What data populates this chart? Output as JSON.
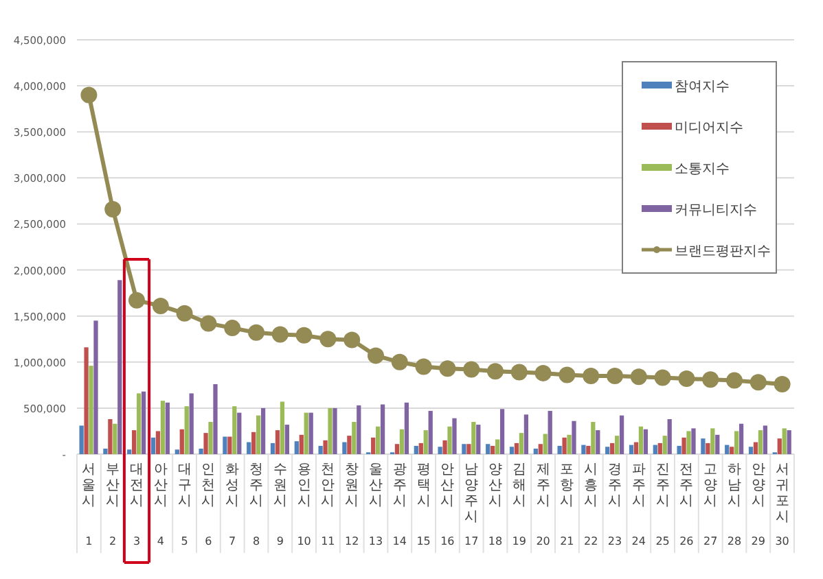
{
  "chart_data": {
    "type": "bar",
    "categories": [
      "서울시 1",
      "부산시 2",
      "대전시 3",
      "아산시 4",
      "대구시 5",
      "인천시 6",
      "화성시 7",
      "청주시 8",
      "수원시 9",
      "용인시 10",
      "천안시 11",
      "창원시 12",
      "울산시 13",
      "광주시 14",
      "평택시 15",
      "안산시 16",
      "남양주시 17",
      "양산시 18",
      "김해시 19",
      "제주시 20",
      "포항시 21",
      "시흥시 22",
      "경주시 23",
      "파주시 24",
      "진주시 25",
      "전주시 26",
      "고양시 27",
      "하남시 28",
      "안양시 29",
      "서귀포시 30"
    ],
    "series": [
      {
        "name": "참여지수",
        "color": "#4f81bd",
        "values": [
          310000,
          60000,
          50000,
          180000,
          50000,
          60000,
          190000,
          130000,
          120000,
          140000,
          90000,
          130000,
          20000,
          20000,
          90000,
          80000,
          110000,
          110000,
          80000,
          60000,
          90000,
          100000,
          80000,
          100000,
          100000,
          90000,
          170000,
          100000,
          80000,
          20000
        ]
      },
      {
        "name": "미디어지수",
        "color": "#c0504d",
        "values": [
          1160000,
          380000,
          260000,
          250000,
          270000,
          230000,
          190000,
          240000,
          260000,
          210000,
          150000,
          200000,
          180000,
          110000,
          120000,
          150000,
          110000,
          90000,
          120000,
          110000,
          180000,
          90000,
          120000,
          130000,
          120000,
          180000,
          120000,
          80000,
          130000,
          170000
        ]
      },
      {
        "name": "소통지수",
        "color": "#9bbb59",
        "values": [
          960000,
          330000,
          660000,
          580000,
          520000,
          350000,
          520000,
          420000,
          570000,
          450000,
          500000,
          350000,
          300000,
          270000,
          260000,
          300000,
          350000,
          160000,
          230000,
          220000,
          210000,
          350000,
          200000,
          300000,
          200000,
          250000,
          280000,
          250000,
          260000,
          280000
        ]
      },
      {
        "name": "커뮤니티지수",
        "color": "#8064a2",
        "values": [
          1450000,
          1890000,
          680000,
          560000,
          660000,
          760000,
          450000,
          500000,
          320000,
          450000,
          500000,
          530000,
          540000,
          560000,
          470000,
          390000,
          320000,
          490000,
          430000,
          470000,
          360000,
          260000,
          420000,
          270000,
          380000,
          280000,
          210000,
          330000,
          310000,
          260000
        ]
      },
      {
        "name": "브랜드평판지수",
        "type": "line",
        "color": "#948a54",
        "marker": "circle",
        "values": [
          3900000,
          2660000,
          1670000,
          1610000,
          1530000,
          1420000,
          1370000,
          1320000,
          1300000,
          1290000,
          1250000,
          1240000,
          1070000,
          1000000,
          950000,
          930000,
          920000,
          900000,
          890000,
          880000,
          860000,
          850000,
          850000,
          840000,
          830000,
          820000,
          810000,
          800000,
          780000,
          760000
        ]
      }
    ],
    "ylim": [
      0,
      4500000
    ],
    "yticks": [
      {
        "value": 0,
        "label": "-"
      },
      {
        "value": 500000,
        "label": "500,000"
      },
      {
        "value": 1000000,
        "label": "1,000,000"
      },
      {
        "value": 1500000,
        "label": "1,500,000"
      },
      {
        "value": 2000000,
        "label": "2,000,000"
      },
      {
        "value": 2500000,
        "label": "2,500,000"
      },
      {
        "value": 3000000,
        "label": "3,000,000"
      },
      {
        "value": 3500000,
        "label": "3,500,000"
      },
      {
        "value": 4000000,
        "label": "4,000,000"
      },
      {
        "value": 4500000,
        "label": "4,500,000"
      }
    ],
    "grid": "y",
    "legend": "top right"
  }
}
